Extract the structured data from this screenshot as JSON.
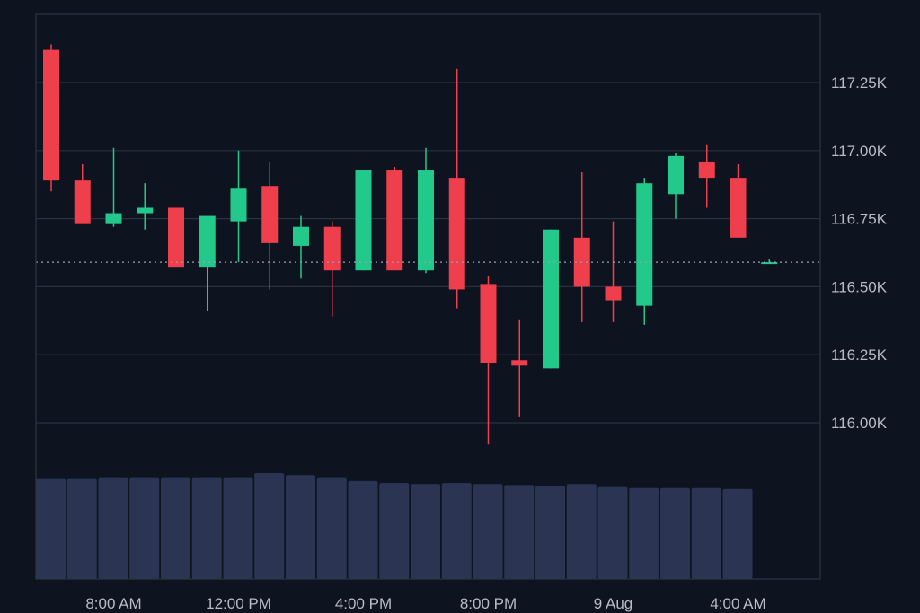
{
  "chart_data": {
    "type": "candlestick",
    "title": "",
    "xlabel": "",
    "ylabel": "",
    "ylim": [
      115.84,
      117.5
    ],
    "y_ticks": [
      {
        "value": 117.25,
        "label": "117.25K"
      },
      {
        "value": 117.0,
        "label": "117.00K"
      },
      {
        "value": 116.75,
        "label": "116.75K"
      },
      {
        "value": 116.5,
        "label": "116.50K"
      },
      {
        "value": 116.25,
        "label": "116.25K"
      },
      {
        "value": 116.0,
        "label": "116.00K"
      }
    ],
    "x_ticks": [
      {
        "index": 2,
        "label": "8:00 AM"
      },
      {
        "index": 6,
        "label": "12:00 PM"
      },
      {
        "index": 10,
        "label": "4:00 PM"
      },
      {
        "index": 14,
        "label": "8:00 PM"
      },
      {
        "index": 18,
        "label": "9 Aug"
      },
      {
        "index": 22,
        "label": "4:00 AM"
      }
    ],
    "last_price": 116.59,
    "grid": true,
    "candles": [
      {
        "open": 117.37,
        "high": 117.39,
        "low": 116.85,
        "close": 116.89
      },
      {
        "open": 116.89,
        "high": 116.95,
        "low": 116.73,
        "close": 116.73
      },
      {
        "open": 116.73,
        "high": 117.01,
        "low": 116.72,
        "close": 116.77
      },
      {
        "open": 116.77,
        "high": 116.88,
        "low": 116.71,
        "close": 116.79
      },
      {
        "open": 116.79,
        "high": 116.79,
        "low": 116.57,
        "close": 116.57
      },
      {
        "open": 116.57,
        "high": 116.76,
        "low": 116.41,
        "close": 116.76
      },
      {
        "open": 116.74,
        "high": 117.0,
        "low": 116.59,
        "close": 116.86
      },
      {
        "open": 116.87,
        "high": 116.96,
        "low": 116.49,
        "close": 116.66
      },
      {
        "open": 116.65,
        "high": 116.76,
        "low": 116.53,
        "close": 116.72
      },
      {
        "open": 116.72,
        "high": 116.74,
        "low": 116.39,
        "close": 116.56
      },
      {
        "open": 116.56,
        "high": 116.93,
        "low": 116.56,
        "close": 116.93
      },
      {
        "open": 116.93,
        "high": 116.94,
        "low": 116.56,
        "close": 116.56
      },
      {
        "open": 116.56,
        "high": 117.01,
        "low": 116.55,
        "close": 116.93
      },
      {
        "open": 116.9,
        "high": 117.3,
        "low": 116.42,
        "close": 116.49
      },
      {
        "open": 116.51,
        "high": 116.54,
        "low": 115.92,
        "close": 116.22
      },
      {
        "open": 116.23,
        "high": 116.38,
        "low": 116.02,
        "close": 116.21
      },
      {
        "open": 116.2,
        "high": 116.71,
        "low": 116.2,
        "close": 116.71
      },
      {
        "open": 116.68,
        "high": 116.92,
        "low": 116.37,
        "close": 116.5
      },
      {
        "open": 116.5,
        "high": 116.74,
        "low": 116.37,
        "close": 116.45
      },
      {
        "open": 116.43,
        "high": 116.9,
        "low": 116.36,
        "close": 116.88
      },
      {
        "open": 116.84,
        "high": 116.99,
        "low": 116.75,
        "close": 116.98
      },
      {
        "open": 116.96,
        "high": 117.02,
        "low": 116.79,
        "close": 116.9
      },
      {
        "open": 116.9,
        "high": 116.95,
        "low": 116.68,
        "close": 116.68
      },
      {
        "open": 116.59,
        "high": 116.6,
        "low": 116.59,
        "close": 116.59
      }
    ],
    "volume": [
      1.0,
      1.0,
      1.01,
      1.01,
      1.01,
      1.01,
      1.01,
      1.06,
      1.04,
      1.01,
      0.98,
      0.96,
      0.95,
      0.96,
      0.95,
      0.94,
      0.93,
      0.95,
      0.92,
      0.91,
      0.91,
      0.91,
      0.9
    ],
    "colors": {
      "background": "#0e1320",
      "up": "#22c98b",
      "down": "#ef3e4c",
      "volume": "#2b3452",
      "grid": "#2a3040",
      "border": "#2e3546",
      "last_price_line": "#9aa3b2"
    }
  }
}
